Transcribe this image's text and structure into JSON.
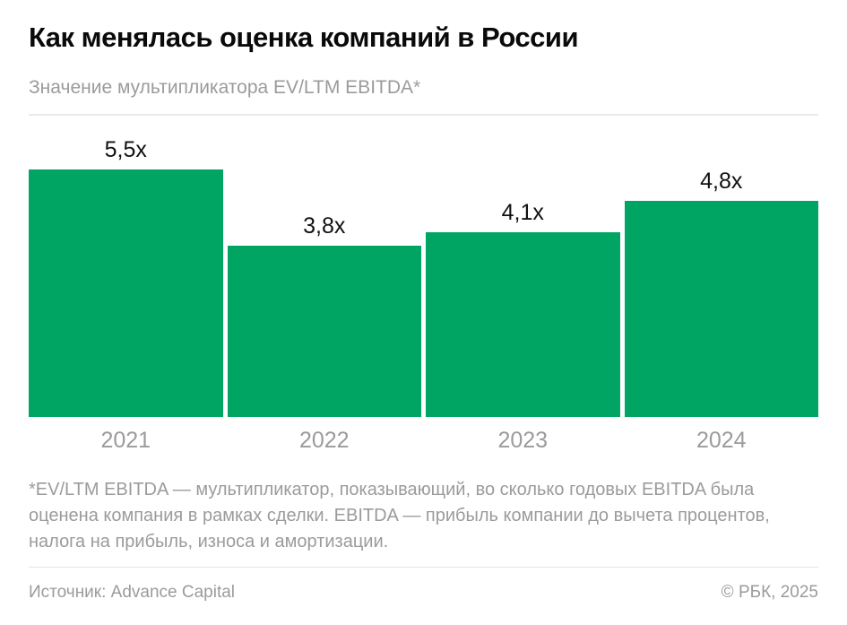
{
  "chart_data": {
    "type": "bar",
    "title": "Как менялась оценка компаний в России",
    "subtitle": "Значение мультипликатора EV/LTM EBITDA*",
    "categories": [
      "2021",
      "2022",
      "2023",
      "2024"
    ],
    "values": [
      5.5,
      3.8,
      4.1,
      4.8
    ],
    "value_labels": [
      "5,5x",
      "3,8x",
      "4,1x",
      "4,8x"
    ],
    "xlabel": "",
    "ylabel": "",
    "ylim": [
      0,
      5.5
    ],
    "grid": false,
    "legend": "none",
    "bar_color": "#00a564",
    "label_color": "#111111",
    "axis_text_color": "#9b9b9b"
  },
  "footnote": {
    "text": "*EV/LTM EBITDA — мультипликатор, показывающий, во сколько годовых EBITDA была оценена компания в рамках сделки. EBITDA — прибыль компании до вычета процентов, налога на прибыль, износа и амортизации."
  },
  "footer": {
    "source": "Источник: Advance Capital",
    "copyright": "© РБК, 2025"
  }
}
